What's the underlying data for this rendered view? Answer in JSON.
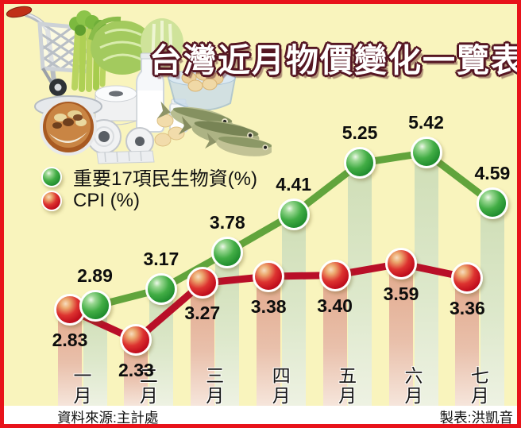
{
  "title": "台灣近月物價變化一覽表",
  "legend": {
    "items": [
      {
        "id": "essentials",
        "label": "重要17項民生物資(%)",
        "marker": "green-ball"
      },
      {
        "id": "cpi",
        "label": "CPI (%)",
        "marker": "red-ball"
      }
    ]
  },
  "footer": {
    "source": "資料來源:主計處",
    "credit": "製表:洪凱音"
  },
  "colors": {
    "background": "#F9F4BD",
    "frame_red": "#E8131A",
    "title_fill": "#FFFFFF",
    "title_outline": "#551622",
    "green_ball": "#2FA437",
    "green_line": "#61A43C",
    "red_ball": "#D41122",
    "red_line": "#B90F28",
    "green_bar": "#D2E0BC",
    "pink_bar": "#E4AE94"
  },
  "chart_data": {
    "type": "line",
    "categories": [
      "一月",
      "二月",
      "三月",
      "四月",
      "五月",
      "六月",
      "七月"
    ],
    "series": [
      {
        "name": "重要17項民生物資(%)",
        "color_key": "green",
        "values": [
          2.89,
          3.17,
          3.78,
          4.41,
          5.25,
          5.42,
          4.59
        ],
        "labels": [
          "2.89",
          "3.17",
          "3.78",
          "4.41",
          "5.25",
          "5.42",
          "4.59"
        ]
      },
      {
        "name": "CPI (%)",
        "color_key": "red",
        "values": [
          2.83,
          2.33,
          3.27,
          3.38,
          3.4,
          3.59,
          3.36
        ],
        "labels": [
          "2.83",
          "2.33",
          "3.27",
          "3.38",
          "3.40",
          "3.59",
          "3.36"
        ]
      }
    ],
    "ylim": [
      1.5,
      6.0
    ],
    "grid": false,
    "legend_position": "upper-left",
    "background_bars": "paired vertical bars under each point: pink under CPI, green under essentials"
  },
  "illustration": {
    "name": "grocery-collage",
    "items": [
      "shopping-cart",
      "celery",
      "cabbage",
      "milk-bottle",
      "milk-jar",
      "egg-bowl",
      "fish",
      "toilet-paper-rolls",
      "soup-bowl"
    ]
  }
}
